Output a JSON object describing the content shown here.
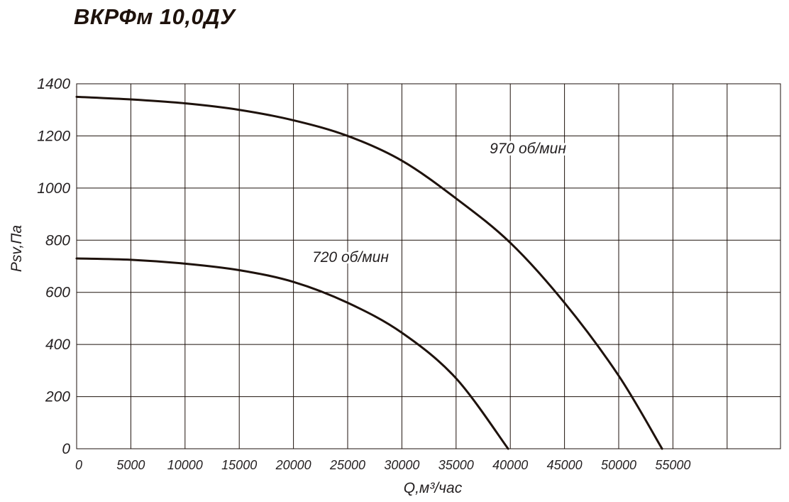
{
  "chart_data": {
    "type": "line",
    "title": "ВКРФм 10,0ДУ",
    "xlabel": "Q,м³/час",
    "ylabel": "Psv,Па",
    "xlim": [
      0,
      64000
    ],
    "ylim": [
      0,
      1400
    ],
    "grid": true,
    "x_ticks": [
      0,
      5000,
      10000,
      15000,
      20000,
      25000,
      30000,
      35000,
      40000,
      45000,
      50000,
      55000
    ],
    "x_tick_labels": [
      "0",
      "5000",
      "10000",
      "15000",
      "20000",
      "25000",
      "30000",
      "35000",
      "40000",
      "45000",
      "50000",
      "55000"
    ],
    "y_ticks": [
      0,
      200,
      400,
      600,
      800,
      1000,
      1200,
      1400
    ],
    "y_tick_labels": [
      "0",
      "200",
      "400",
      "600",
      "800",
      "1000",
      "1200",
      "1400"
    ],
    "line_color": "#1e120c",
    "series": [
      {
        "name": "970 об/мин",
        "x": [
          0,
          5000,
          10000,
          15000,
          20000,
          25000,
          30000,
          35000,
          40000,
          45000,
          50000,
          54000
        ],
        "y": [
          1350,
          1340,
          1325,
          1300,
          1260,
          1200,
          1105,
          960,
          790,
          560,
          280,
          0
        ]
      },
      {
        "name": "720 об/мин",
        "x": [
          0,
          5000,
          10000,
          15000,
          20000,
          25000,
          30000,
          35000,
          39800
        ],
        "y": [
          730,
          725,
          710,
          685,
          640,
          560,
          445,
          270,
          0
        ]
      }
    ]
  }
}
